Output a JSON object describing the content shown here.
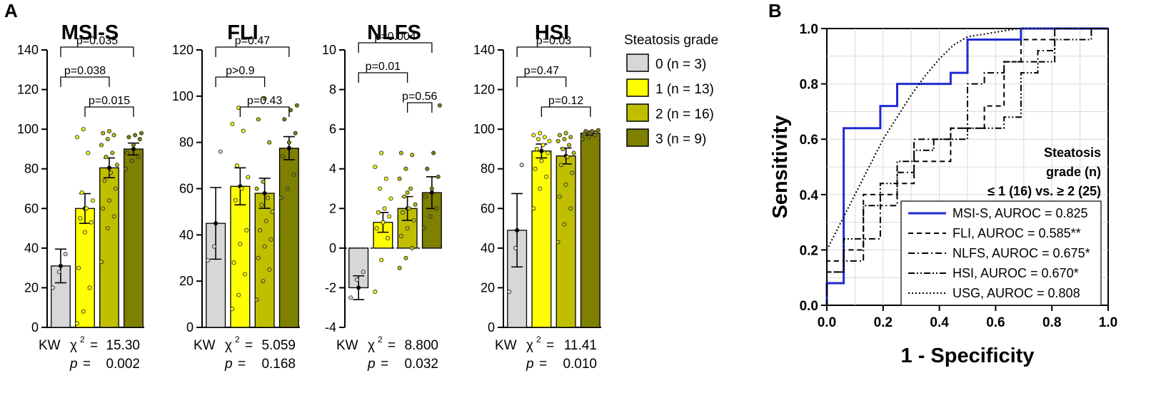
{
  "panel_labels": {
    "a": "A",
    "b": "B"
  },
  "legend": {
    "title": "Steatosis grade",
    "items": [
      {
        "label": "0 (n = 3)",
        "color": "#d7d7d7"
      },
      {
        "label": "1 (n = 13)",
        "color": "#ffff00"
      },
      {
        "label": "2 (n = 16)",
        "color": "#bfbf00"
      },
      {
        "label": "3 (n = 9)",
        "color": "#7f7f00"
      }
    ]
  },
  "chart_data": [
    {
      "type": "bar",
      "title": "MSI-S",
      "categories": [
        "0",
        "1",
        "2",
        "3"
      ],
      "values": [
        31,
        60,
        80.5,
        90
      ],
      "errors": [
        8.5,
        7.5,
        5,
        3
      ],
      "points": [
        [
          20,
          28,
          37
        ],
        [
          2,
          8,
          20,
          30,
          48,
          53,
          55,
          60,
          64,
          68,
          88,
          96,
          100
        ],
        [
          33,
          50,
          56,
          60,
          64,
          70,
          74,
          78,
          82,
          86,
          88,
          92,
          95,
          97,
          98,
          99
        ],
        [
          80,
          84,
          86,
          88,
          92,
          95,
          96,
          97,
          98
        ]
      ],
      "ylim": [
        0,
        140
      ],
      "yticks": [
        0,
        20,
        40,
        60,
        80,
        100,
        120,
        140
      ],
      "comparisons": [
        {
          "label": "p=0.035",
          "from": 0,
          "to": 3,
          "level": 2
        },
        {
          "label": "p=0.038",
          "from": 0,
          "to": 2,
          "level": 1
        },
        {
          "label": "p=0.015",
          "from": 1,
          "to": 3,
          "level": 0
        }
      ],
      "kw_label": "KW",
      "chi_symbol": "χ",
      "kw_value": "15.30",
      "p_symbol": "p",
      "p_value": "0.002"
    },
    {
      "type": "bar",
      "title": "FLI",
      "categories": [
        "0",
        "1",
        "2",
        "3"
      ],
      "values": [
        45,
        61,
        58,
        77.5
      ],
      "errors": [
        15.5,
        8,
        6.5,
        5
      ],
      "points": [
        [
          29,
          35,
          76
        ],
        [
          8,
          14,
          23,
          28,
          36,
          42,
          55,
          60,
          65,
          70,
          85,
          88,
          95
        ],
        [
          12,
          20,
          25,
          30,
          35,
          38,
          42,
          46,
          50,
          53,
          56,
          60,
          63,
          80,
          90,
          99
        ],
        [
          56,
          60,
          66,
          74,
          80,
          84,
          90,
          94,
          96
        ]
      ],
      "ylim": [
        0,
        120
      ],
      "yticks": [
        0,
        20,
        40,
        60,
        80,
        100,
        120
      ],
      "comparisons": [
        {
          "label": "p=0.47",
          "from": 0,
          "to": 3,
          "level": 2
        },
        {
          "label": "p>0.9",
          "from": 0,
          "to": 2,
          "level": 1
        },
        {
          "label": "p=0.43",
          "from": 1,
          "to": 3,
          "level": 0
        }
      ],
      "kw_label": "KW",
      "chi_symbol": "χ",
      "kw_value": "5.059",
      "p_symbol": "p",
      "p_value": "0.168"
    },
    {
      "type": "bar",
      "title": "NLFS",
      "categories": [
        "0",
        "1",
        "2",
        "3"
      ],
      "values": [
        -2,
        1.3,
        2,
        2.8
      ],
      "errors": [
        0.6,
        0.5,
        0.6,
        0.8
      ],
      "points": [
        [
          -2.5,
          -1.6,
          -1.2
        ],
        [
          -2.2,
          -0.6,
          0.5,
          1.0,
          1.3,
          1.6,
          1.8,
          2.0,
          2.5,
          3.0,
          3.5,
          4.1,
          4.8
        ],
        [
          -1.0,
          -0.5,
          0.0,
          0.6,
          1.0,
          1.4,
          1.8,
          2.0,
          2.2,
          2.6,
          3.0,
          3.5,
          4.0,
          4.7,
          4.8,
          2.8
        ],
        [
          1.0,
          1.6,
          2.0,
          2.6,
          3.0,
          3.6,
          4.0,
          4.8,
          7.2
        ]
      ],
      "ylim": [
        -4,
        10
      ],
      "yticks": [
        -4,
        -2,
        0,
        2,
        4,
        6,
        8,
        10
      ],
      "comparisons": [
        {
          "label": "p=0.004",
          "from": 0,
          "to": 3,
          "level": 2
        },
        {
          "label": "p=0.01",
          "from": 0,
          "to": 2,
          "level": 1
        },
        {
          "label": "p=0.56",
          "from": 2,
          "to": 3,
          "level": 0
        }
      ],
      "kw_label": "KW",
      "chi_symbol": "χ",
      "kw_value": "8.800",
      "p_symbol": "p",
      "p_value": "0.032"
    },
    {
      "type": "bar",
      "title": "HSI",
      "categories": [
        "0",
        "1",
        "2",
        "3"
      ],
      "values": [
        49,
        89,
        86.5,
        98
      ],
      "errors": [
        18.5,
        3.5,
        4,
        1
      ],
      "points": [
        [
          18,
          40,
          82
        ],
        [
          60,
          70,
          76,
          80,
          84,
          88,
          90,
          92,
          94,
          95,
          96,
          97,
          98
        ],
        [
          43,
          52,
          60,
          66,
          72,
          78,
          82,
          86,
          88,
          90,
          92,
          94,
          95,
          96,
          97,
          98
        ],
        [
          95,
          96,
          97,
          97.5,
          98,
          98.5,
          99,
          99,
          99.5
        ]
      ],
      "ylim": [
        0,
        140
      ],
      "yticks": [
        0,
        20,
        40,
        60,
        80,
        100,
        120,
        140
      ],
      "comparisons": [
        {
          "label": "p=0.03",
          "from": 0,
          "to": 3,
          "level": 2
        },
        {
          "label": "p=0.47",
          "from": 0,
          "to": 2,
          "level": 1
        },
        {
          "label": "p=0.12",
          "from": 1,
          "to": 3,
          "level": 0
        }
      ],
      "kw_label": "KW",
      "chi_symbol": "χ",
      "kw_value": "11.41",
      "p_symbol": "p",
      "p_value": "0.010"
    },
    {
      "type": "line",
      "title": "",
      "xlabel": "1 - Specificity",
      "ylabel": "Sensitivity",
      "xlim": [
        0,
        1
      ],
      "ylim": [
        0,
        1
      ],
      "xticks": [
        "0.0",
        "0.2",
        "0.4",
        "0.6",
        "0.8",
        "1.0"
      ],
      "yticks": [
        "0.0",
        "0.2",
        "0.4",
        "0.6",
        "0.8",
        "1.0"
      ],
      "grid": true,
      "annotation": [
        "Steatosis",
        "grade (n)",
        "≤ 1 (16) vs. ≥ 2 (25)"
      ],
      "series": [
        {
          "name": "MSI-S, AUROC = 0.825",
          "style": "solid",
          "color": "#1f2bd1",
          "x": [
            0,
            0,
            0.06,
            0.06,
            0.19,
            0.19,
            0.25,
            0.25,
            0.44,
            0.44,
            0.5,
            0.5,
            0.69,
            0.69,
            1
          ],
          "y": [
            0,
            0.08,
            0.08,
            0.64,
            0.64,
            0.72,
            0.72,
            0.8,
            0.8,
            0.84,
            0.84,
            0.96,
            0.96,
            1,
            1
          ]
        },
        {
          "name": "FLI, AUROC = 0.585**",
          "style": "dash",
          "color": "#000000",
          "x": [
            0,
            0,
            0.06,
            0.06,
            0.13,
            0.13,
            0.25,
            0.25,
            0.31,
            0.31,
            0.44,
            0.44,
            0.56,
            0.56,
            0.63,
            0.63,
            0.69,
            0.69,
            0.75,
            0.75,
            0.81,
            0.81,
            1
          ],
          "y": [
            0,
            0.16,
            0.16,
            0.2,
            0.2,
            0.4,
            0.4,
            0.44,
            0.44,
            0.52,
            0.52,
            0.64,
            0.64,
            0.72,
            0.72,
            0.88,
            0.88,
            0.96,
            0.96,
            0.96,
            0.96,
            1,
            1
          ]
        },
        {
          "name": "NLFS, AUROC = 0.675*",
          "style": "dashdot",
          "color": "#000000",
          "x": [
            0,
            0,
            0.06,
            0.06,
            0.13,
            0.13,
            0.19,
            0.19,
            0.25,
            0.25,
            0.31,
            0.31,
            0.44,
            0.44,
            0.5,
            0.5,
            0.56,
            0.56,
            0.63,
            0.63,
            0.75,
            0.75,
            0.81,
            0.81,
            1
          ],
          "y": [
            0,
            0.12,
            0.12,
            0.16,
            0.16,
            0.24,
            0.24,
            0.36,
            0.36,
            0.48,
            0.48,
            0.6,
            0.6,
            0.64,
            0.64,
            0.8,
            0.8,
            0.84,
            0.84,
            0.88,
            0.88,
            0.92,
            0.92,
            1,
            1
          ]
        },
        {
          "name": "HSI, AUROC = 0.670*",
          "style": "dashdotdot",
          "color": "#000000",
          "x": [
            0,
            0,
            0.06,
            0.06,
            0.13,
            0.13,
            0.19,
            0.19,
            0.25,
            0.25,
            0.31,
            0.31,
            0.38,
            0.38,
            0.5,
            0.5,
            0.63,
            0.63,
            0.69,
            0.69,
            0.75,
            0.75,
            0.81,
            0.81,
            0.94,
            0.94,
            1
          ],
          "y": [
            0,
            0.12,
            0.12,
            0.24,
            0.24,
            0.36,
            0.36,
            0.44,
            0.44,
            0.52,
            0.52,
            0.56,
            0.56,
            0.6,
            0.6,
            0.64,
            0.64,
            0.68,
            0.68,
            0.84,
            0.84,
            0.88,
            0.88,
            0.96,
            0.96,
            1,
            1
          ]
        },
        {
          "name": "USG, AUROC = 0.808",
          "style": "dot",
          "color": "#000000",
          "x": [
            0,
            0.05,
            0.1,
            0.15,
            0.2,
            0.25,
            0.3,
            0.35,
            0.4,
            0.45,
            0.5,
            0.56,
            0.62,
            0.68,
            0.75,
            0.85,
            1
          ],
          "y": [
            0.2,
            0.3,
            0.4,
            0.5,
            0.6,
            0.68,
            0.76,
            0.83,
            0.89,
            0.94,
            0.97,
            0.98,
            0.99,
            1,
            1,
            1,
            1
          ]
        }
      ]
    }
  ]
}
